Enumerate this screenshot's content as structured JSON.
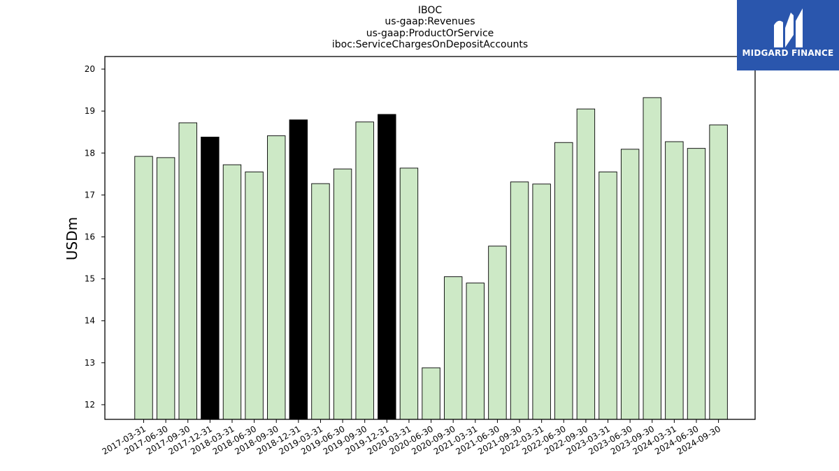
{
  "titles": {
    "line1": "IBOC",
    "line2": "us-gaap:Revenues",
    "line3": "us-gaap:ProductOrService",
    "line4": "iboc:ServiceChargesOnDepositAccounts"
  },
  "logo": {
    "text": "MIDGARD FINANCE",
    "color": "#2a56ad"
  },
  "colors": {
    "normal_bar": "#cde9c6",
    "highlight_bar": "#000000",
    "edge": "#000000"
  },
  "chart_data": {
    "type": "bar",
    "title": "IBOC\nus-gaap:Revenues\nus-gaap:ProductOrService\niboc:ServiceChargesOnDepositAccounts",
    "xlabel": "",
    "ylabel": "USDm",
    "ylim": [
      11.65,
      20.3
    ],
    "yticks": [
      12,
      13,
      14,
      15,
      16,
      17,
      18,
      19,
      20
    ],
    "grid": false,
    "categories": [
      "2017-03-31",
      "2017-06-30",
      "2017-09-30",
      "2017-12-31",
      "2018-03-31",
      "2018-06-30",
      "2018-09-30",
      "2018-12-31",
      "2019-03-31",
      "2019-06-30",
      "2019-09-30",
      "2019-12-31",
      "2020-03-31",
      "2020-06-30",
      "2020-09-30",
      "2021-03-31",
      "2021-06-30",
      "2021-09-30",
      "2022-03-31",
      "2022-06-30",
      "2022-09-30",
      "2023-03-31",
      "2023-06-30",
      "2023-09-30",
      "2024-03-31",
      "2024-06-30",
      "2024-09-30"
    ],
    "values": [
      17.92,
      17.89,
      18.72,
      18.38,
      17.72,
      17.55,
      18.41,
      18.79,
      17.27,
      17.62,
      18.74,
      18.92,
      17.64,
      12.88,
      15.05,
      14.9,
      15.78,
      17.31,
      17.26,
      18.25,
      19.05,
      17.55,
      18.09,
      19.32,
      18.27,
      18.11,
      18.67
    ],
    "highlighted": [
      false,
      false,
      false,
      true,
      false,
      false,
      false,
      true,
      false,
      false,
      false,
      true,
      false,
      false,
      false,
      false,
      false,
      false,
      false,
      false,
      false,
      false,
      false,
      false,
      false,
      false,
      false
    ]
  }
}
